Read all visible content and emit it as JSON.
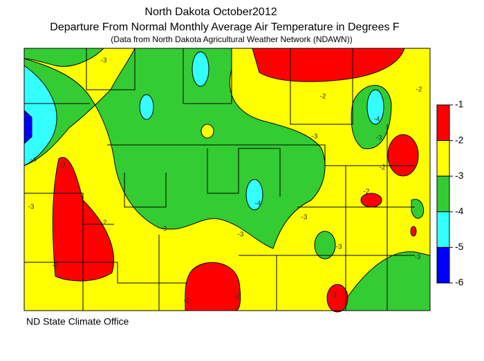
{
  "title_lines": [
    "North Dakota October2012",
    "Departure From Normal Monthly Average Air Temperature in Degrees F",
    "(Data from North Dakota Agricultural Weather Network (NDAWN))"
  ],
  "legend": {
    "ticks": [
      -1,
      -2,
      -3,
      -4,
      -5,
      -6
    ],
    "colors": [
      "#ff0000",
      "#ffff00",
      "#33cc33",
      "#33ffff",
      "#0000ff"
    ]
  },
  "contour_labels": [
    -3,
    -2,
    -2,
    -4,
    -2,
    -3,
    -2,
    -3,
    -3,
    -3,
    -3,
    -4,
    -4,
    -3,
    -2,
    -2,
    -3,
    -2,
    -2,
    -2,
    -3,
    -2
  ],
  "footer": "ND State Climate Office"
}
